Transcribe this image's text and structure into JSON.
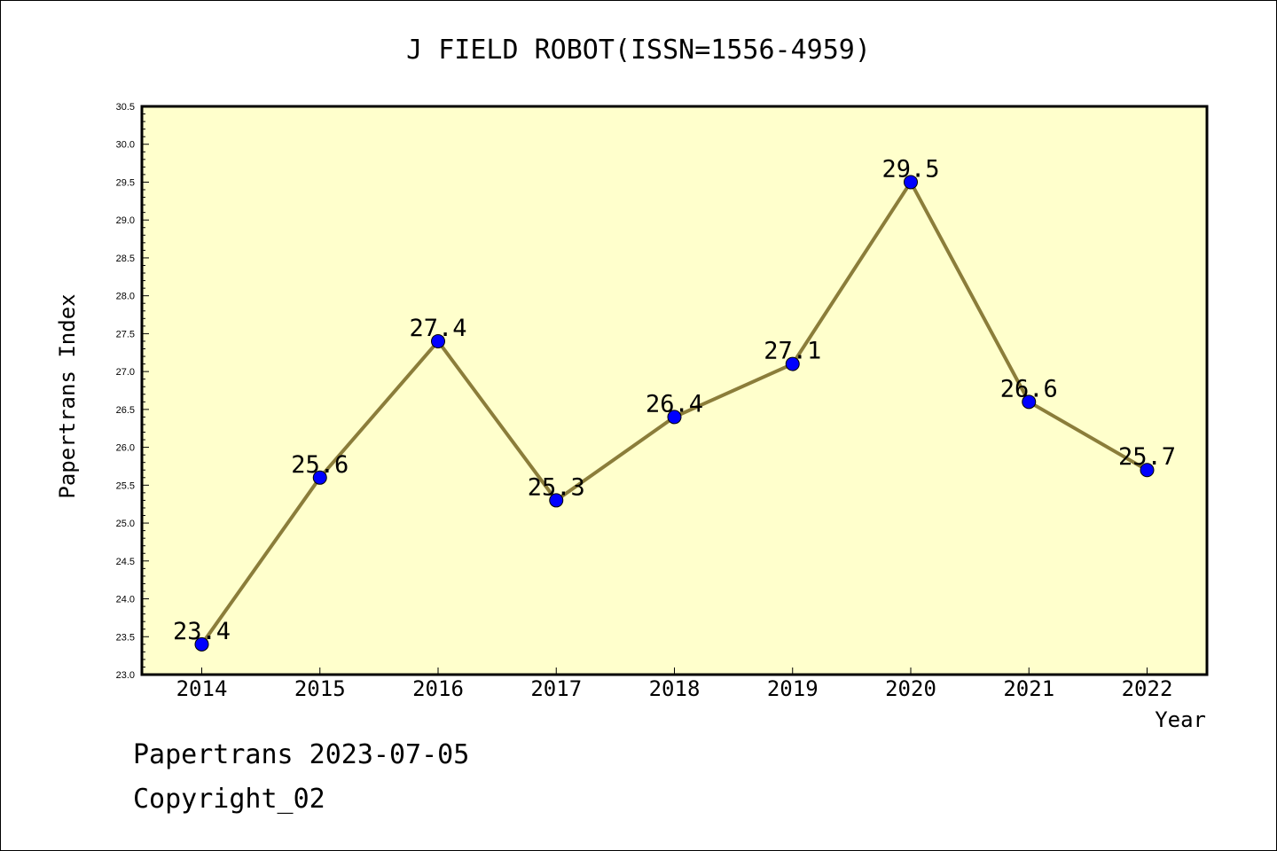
{
  "footer": {
    "line1": "Papertrans 2023-07-05",
    "line2": "Copyright_02"
  },
  "colors": {
    "plot_background": "#ffffcc",
    "line": "#8b7d3a",
    "marker": "#0000ff"
  },
  "chart_data": {
    "type": "line",
    "title": "J FIELD ROBOT(ISSN=1556-4959)",
    "xlabel": "Year",
    "ylabel": "Papertrans Index",
    "categories": [
      "2014",
      "2015",
      "2016",
      "2017",
      "2018",
      "2019",
      "2020",
      "2021",
      "2022"
    ],
    "series": [
      {
        "values": [
          23.4,
          25.6,
          27.4,
          25.3,
          26.4,
          27.1,
          29.5,
          26.6,
          25.7
        ]
      }
    ],
    "data_labels": [
      "23.4",
      "25.6",
      "27.4",
      "25.3",
      "26.4",
      "27.1",
      "29.5",
      "26.6",
      "25.7"
    ],
    "ylim": [
      23.0,
      30.5
    ],
    "yticks": [
      "23.0",
      "23.5",
      "24.0",
      "24.5",
      "25.0",
      "25.5",
      "26.0",
      "26.5",
      "27.0",
      "27.5",
      "28.0",
      "28.5",
      "29.0",
      "29.5",
      "30.0",
      "30.5"
    ],
    "grid": false,
    "legend": "none"
  }
}
